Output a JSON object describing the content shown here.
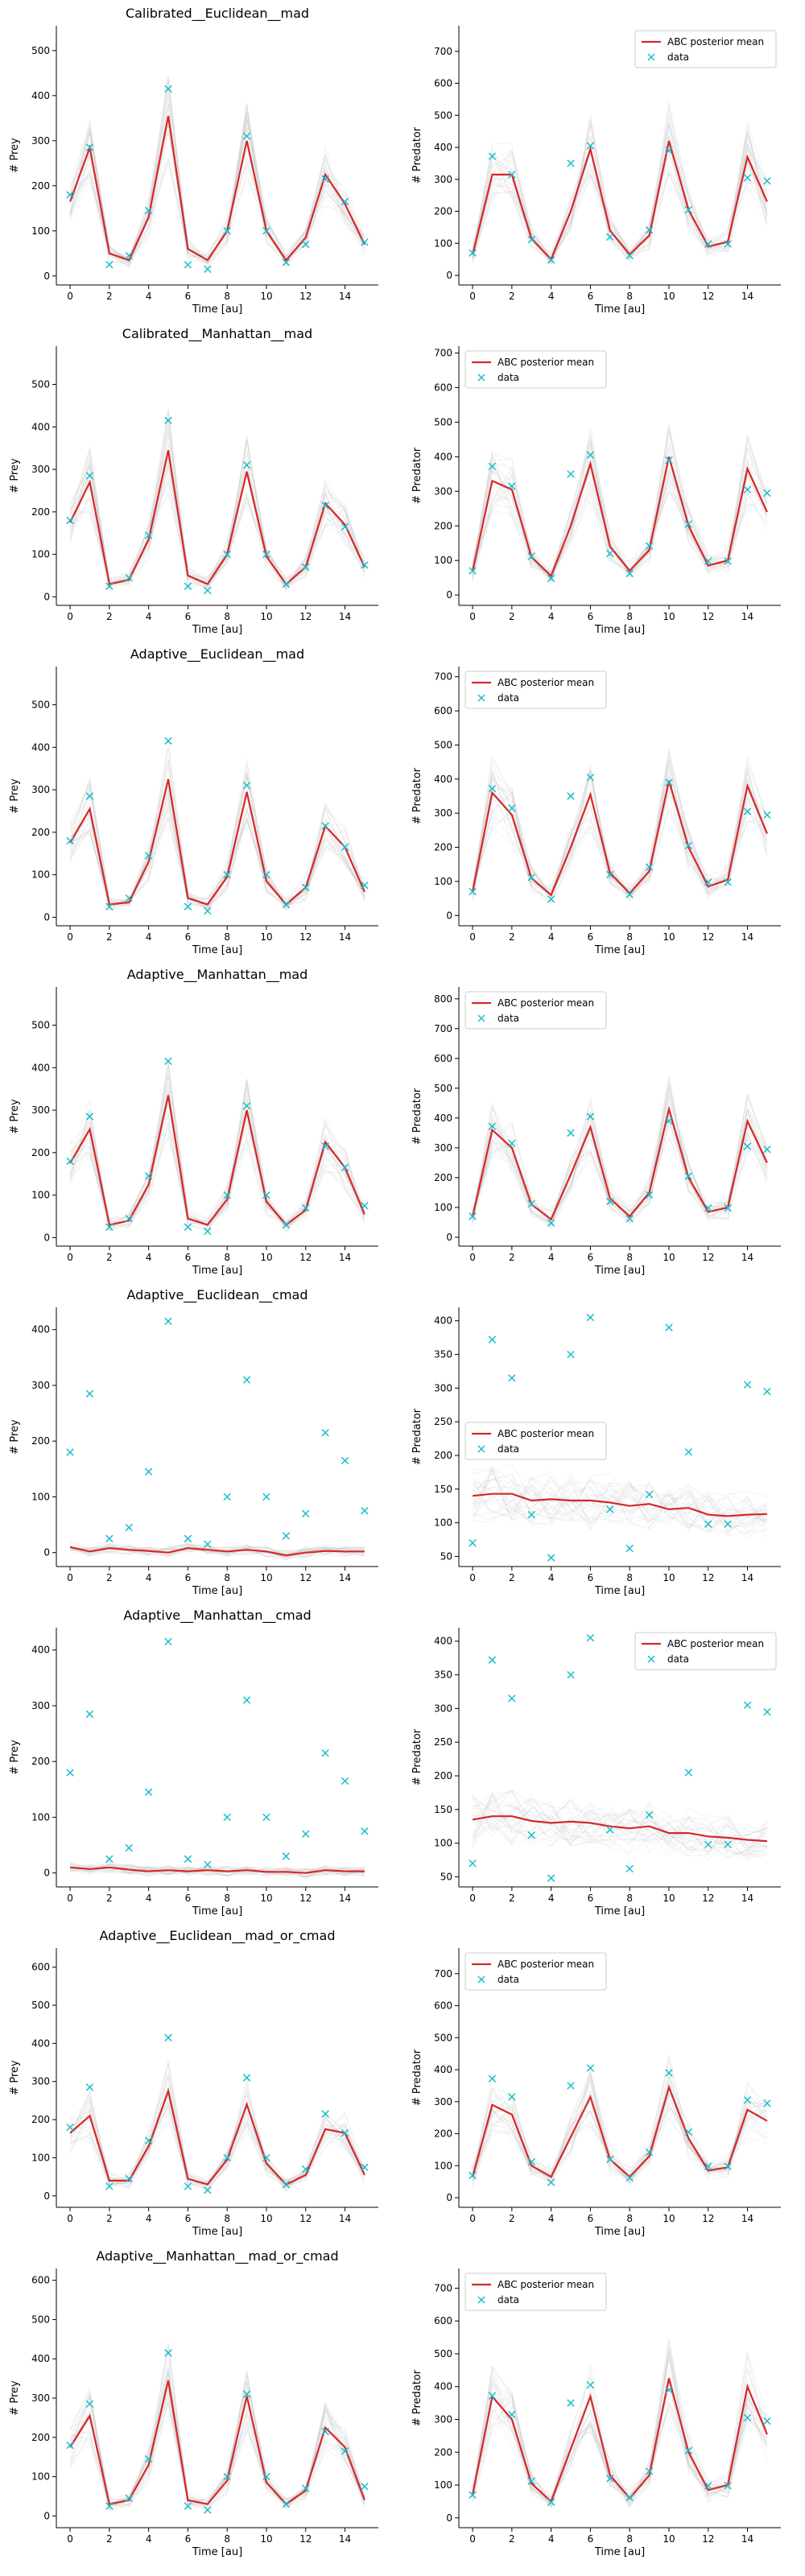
{
  "figure": {
    "data_color": "#17becf",
    "mean_color": "#d62728",
    "sample_color": "#bbbbbb",
    "legend_mean": "ABC posterior mean",
    "legend_data": "data"
  },
  "shared": {
    "x": [
      0,
      1,
      2,
      3,
      4,
      5,
      6,
      7,
      8,
      9,
      10,
      11,
      12,
      13,
      14,
      15
    ],
    "xlabel": "Time [au]",
    "xticks": [
      0,
      2,
      4,
      6,
      8,
      10,
      12,
      14
    ],
    "prey_data": [
      180,
      285,
      25,
      45,
      145,
      415,
      25,
      15,
      100,
      310,
      100,
      30,
      70,
      215,
      165,
      75
    ],
    "predator_data": [
      70,
      372,
      315,
      112,
      48,
      350,
      405,
      120,
      62,
      142,
      390,
      205,
      98,
      98,
      305,
      295
    ]
  },
  "chart_data": [
    {
      "type": "line",
      "title": "Calibrated__Euclidean__mad",
      "ylabel": "# Prey",
      "ylim": [
        -20,
        555
      ],
      "yticks": [
        0,
        100,
        200,
        300,
        400,
        500
      ],
      "legend": "none",
      "series": [
        {
          "name": "ABC posterior mean",
          "values": [
            165,
            285,
            50,
            35,
            130,
            355,
            60,
            35,
            100,
            300,
            100,
            35,
            85,
            225,
            160,
            70
          ]
        }
      ]
    },
    {
      "type": "line",
      "title": "",
      "ylabel": "# Predator",
      "ylim": [
        -30,
        780
      ],
      "yticks": [
        0,
        100,
        200,
        300,
        400,
        500,
        600,
        700
      ],
      "legend": "top-right",
      "series": [
        {
          "name": "ABC posterior mean",
          "values": [
            65,
            315,
            315,
            115,
            50,
            200,
            395,
            140,
            65,
            125,
            420,
            205,
            90,
            105,
            370,
            230
          ]
        }
      ]
    },
    {
      "type": "line",
      "title": "Calibrated__Manhattan__mad",
      "ylabel": "# Prey",
      "ylim": [
        -20,
        590
      ],
      "yticks": [
        0,
        100,
        200,
        300,
        400,
        500
      ],
      "legend": "none",
      "series": [
        {
          "name": "ABC posterior mean",
          "values": [
            175,
            270,
            30,
            40,
            135,
            345,
            50,
            30,
            100,
            295,
            95,
            30,
            70,
            220,
            170,
            70
          ]
        }
      ]
    },
    {
      "type": "line",
      "title": "",
      "ylabel": "# Predator",
      "ylim": [
        -30,
        720
      ],
      "yticks": [
        0,
        100,
        200,
        300,
        400,
        500,
        600,
        700
      ],
      "legend": "top-left",
      "series": [
        {
          "name": "ABC posterior mean",
          "values": [
            70,
            330,
            305,
            110,
            55,
            200,
            380,
            140,
            70,
            130,
            400,
            200,
            85,
            100,
            365,
            240
          ]
        }
      ]
    },
    {
      "type": "line",
      "title": "Adaptive__Euclidean__mad",
      "ylabel": "# Prey",
      "ylim": [
        -20,
        590
      ],
      "yticks": [
        0,
        100,
        200,
        300,
        400,
        500
      ],
      "legend": "none",
      "series": [
        {
          "name": "ABC posterior mean",
          "values": [
            175,
            255,
            30,
            35,
            130,
            325,
            45,
            30,
            95,
            295,
            85,
            30,
            70,
            215,
            165,
            60
          ]
        }
      ]
    },
    {
      "type": "line",
      "title": "",
      "ylabel": "# Predator",
      "ylim": [
        -30,
        730
      ],
      "yticks": [
        0,
        100,
        200,
        300,
        400,
        500,
        600,
        700
      ],
      "legend": "top-left",
      "series": [
        {
          "name": "ABC posterior mean",
          "values": [
            70,
            360,
            295,
            110,
            60,
            200,
            355,
            125,
            65,
            130,
            395,
            200,
            85,
            105,
            380,
            240
          ]
        }
      ]
    },
    {
      "type": "line",
      "title": "Adaptive__Manhattan__mad",
      "ylabel": "# Prey",
      "ylim": [
        -20,
        590
      ],
      "yticks": [
        0,
        100,
        200,
        300,
        400,
        500
      ],
      "legend": "none",
      "series": [
        {
          "name": "ABC posterior mean",
          "values": [
            175,
            255,
            30,
            40,
            125,
            335,
            45,
            30,
            90,
            300,
            85,
            30,
            65,
            225,
            165,
            55
          ]
        }
      ]
    },
    {
      "type": "line",
      "title": "",
      "ylabel": "# Predator",
      "ylim": [
        -30,
        840
      ],
      "yticks": [
        0,
        100,
        200,
        300,
        400,
        500,
        600,
        700,
        800
      ],
      "legend": "top-left",
      "series": [
        {
          "name": "ABC posterior mean",
          "values": [
            70,
            360,
            300,
            110,
            60,
            210,
            370,
            130,
            70,
            150,
            430,
            200,
            85,
            100,
            390,
            250
          ]
        }
      ]
    },
    {
      "type": "line",
      "title": "Adaptive__Euclidean__cmad",
      "ylabel": "# Prey",
      "ylim": [
        -25,
        440
      ],
      "yticks": [
        0,
        100,
        200,
        300,
        400
      ],
      "legend": "none",
      "series": [
        {
          "name": "ABC posterior mean",
          "values": [
            10,
            2,
            8,
            5,
            3,
            0,
            8,
            5,
            2,
            5,
            2,
            -5,
            0,
            3,
            2,
            2
          ]
        }
      ]
    },
    {
      "type": "line",
      "title": "",
      "ylabel": "# Predator",
      "ylim": [
        35,
        420
      ],
      "yticks": [
        50,
        100,
        150,
        200,
        250,
        300,
        350,
        400
      ],
      "legend": "center-left",
      "series": [
        {
          "name": "ABC posterior mean",
          "values": [
            140,
            143,
            143,
            133,
            135,
            133,
            133,
            130,
            125,
            128,
            120,
            122,
            112,
            110,
            112,
            113
          ]
        }
      ]
    },
    {
      "type": "line",
      "title": "Adaptive__Manhattan__cmad",
      "ylabel": "# Prey",
      "ylim": [
        -25,
        440
      ],
      "yticks": [
        0,
        100,
        200,
        300,
        400
      ],
      "legend": "none",
      "series": [
        {
          "name": "ABC posterior mean",
          "values": [
            10,
            7,
            10,
            6,
            3,
            5,
            3,
            5,
            3,
            5,
            2,
            2,
            0,
            5,
            3,
            3
          ]
        }
      ]
    },
    {
      "type": "line",
      "title": "",
      "ylabel": "# Predator",
      "ylim": [
        35,
        420
      ],
      "yticks": [
        50,
        100,
        150,
        200,
        250,
        300,
        350,
        400
      ],
      "legend": "top-right",
      "series": [
        {
          "name": "ABC posterior mean",
          "values": [
            135,
            140,
            140,
            133,
            130,
            132,
            130,
            125,
            122,
            125,
            115,
            115,
            110,
            108,
            105,
            103
          ]
        }
      ]
    },
    {
      "type": "line",
      "title": "Adaptive__Euclidean__mad_or_cmad",
      "ylabel": "# Prey",
      "ylim": [
        -30,
        650
      ],
      "yticks": [
        0,
        100,
        200,
        300,
        400,
        500,
        600
      ],
      "legend": "none",
      "series": [
        {
          "name": "ABC posterior mean",
          "values": [
            165,
            210,
            40,
            40,
            130,
            275,
            45,
            30,
            95,
            240,
            85,
            30,
            55,
            175,
            165,
            55
          ]
        }
      ]
    },
    {
      "type": "line",
      "title": "",
      "ylabel": "# Predator",
      "ylim": [
        -30,
        780
      ],
      "yticks": [
        0,
        100,
        200,
        300,
        400,
        500,
        600,
        700
      ],
      "legend": "top-left",
      "series": [
        {
          "name": "ABC posterior mean",
          "values": [
            65,
            290,
            260,
            100,
            65,
            190,
            315,
            120,
            65,
            130,
            345,
            185,
            85,
            95,
            275,
            240
          ]
        }
      ]
    },
    {
      "type": "line",
      "title": "Adaptive__Manhattan__mad_or_cmad",
      "ylabel": "# Prey",
      "ylim": [
        -30,
        630
      ],
      "yticks": [
        0,
        100,
        200,
        300,
        400,
        500,
        600
      ],
      "legend": "none",
      "series": [
        {
          "name": "ABC posterior mean",
          "values": [
            175,
            255,
            30,
            40,
            130,
            345,
            40,
            30,
            90,
            305,
            85,
            30,
            65,
            225,
            175,
            40
          ]
        }
      ]
    },
    {
      "type": "line",
      "title": "",
      "ylabel": "# Predator",
      "ylim": [
        -30,
        760
      ],
      "yticks": [
        0,
        100,
        200,
        300,
        400,
        500,
        600,
        700
      ],
      "legend": "top-left",
      "series": [
        {
          "name": "ABC posterior mean",
          "values": [
            70,
            370,
            300,
            105,
            50,
            210,
            370,
            130,
            60,
            130,
            425,
            200,
            85,
            100,
            400,
            255
          ]
        }
      ]
    }
  ]
}
